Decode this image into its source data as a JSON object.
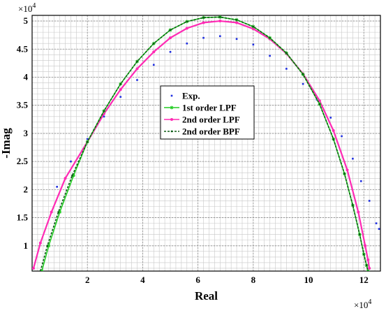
{
  "chart_data": {
    "type": "scatter",
    "xlabel": "Real",
    "ylabel": "-Imag",
    "x_multiplier": "×10",
    "x_exponent": "4",
    "y_multiplier": "×10",
    "y_exponent": "4",
    "xlim": [
      0,
      12.6
    ],
    "ylim": [
      0.55,
      5.1
    ],
    "x_ticks": [
      2,
      4,
      6,
      8,
      10,
      12
    ],
    "y_ticks": [
      1,
      1.5,
      2,
      2.5,
      3,
      3.5,
      4,
      4.5,
      5
    ],
    "grid": true,
    "minor_grid": true,
    "legend_position": "center",
    "series": [
      {
        "name": "Exp.",
        "style": "dots",
        "color": "#1f2fe0",
        "x": [
          0.9,
          1.4,
          2.0,
          2.6,
          3.2,
          3.8,
          4.4,
          5.0,
          5.6,
          6.2,
          6.8,
          7.4,
          8.0,
          8.6,
          9.2,
          9.8,
          10.3,
          10.8,
          11.2,
          11.6,
          11.9,
          12.2,
          12.45,
          12.55
        ],
        "y": [
          2.05,
          2.5,
          2.9,
          3.3,
          3.65,
          3.95,
          4.22,
          4.45,
          4.6,
          4.7,
          4.73,
          4.68,
          4.58,
          4.38,
          4.15,
          3.88,
          3.6,
          3.28,
          2.95,
          2.55,
          2.15,
          1.8,
          1.4,
          1.3
        ]
      },
      {
        "name": "1st order LPF",
        "style": "star-line",
        "color": "#22cc22",
        "x": [
          0.35,
          0.6,
          1.0,
          1.5,
          2.0,
          2.6,
          3.2,
          3.8,
          4.4,
          5.0,
          5.6,
          6.2,
          6.8,
          7.4,
          8.0,
          8.6,
          9.2,
          9.8,
          10.4,
          10.9,
          11.3,
          11.6,
          11.85,
          12.0,
          12.1,
          12.15
        ],
        "y": [
          0.55,
          1.0,
          1.6,
          2.25,
          2.85,
          3.4,
          3.88,
          4.28,
          4.6,
          4.84,
          4.99,
          5.06,
          5.07,
          5.02,
          4.9,
          4.7,
          4.43,
          4.05,
          3.52,
          2.9,
          2.28,
          1.72,
          1.2,
          0.85,
          0.65,
          0.55
        ]
      },
      {
        "name": "2nd order LPF",
        "style": "dot-line",
        "color": "#ff2ab4",
        "x": [
          0.05,
          0.3,
          0.7,
          1.2,
          2.0,
          2.6,
          3.2,
          3.8,
          4.4,
          5.0,
          5.6,
          6.2,
          6.8,
          7.4,
          8.0,
          8.6,
          9.2,
          9.8,
          10.4,
          10.9,
          11.4,
          11.8,
          12.05,
          12.15,
          12.2
        ],
        "y": [
          0.6,
          1.05,
          1.6,
          2.2,
          2.85,
          3.35,
          3.78,
          4.15,
          4.45,
          4.7,
          4.87,
          4.97,
          5.0,
          4.97,
          4.86,
          4.68,
          4.42,
          4.06,
          3.58,
          3.05,
          2.35,
          1.6,
          1.0,
          0.75,
          0.6
        ]
      },
      {
        "name": "2nd order BPF",
        "style": "dash-line",
        "color": "#0b5a14",
        "x": [
          0.3,
          0.55,
          0.95,
          1.45,
          2.0,
          2.6,
          3.2,
          3.8,
          4.4,
          5.0,
          5.6,
          6.2,
          6.8,
          7.4,
          8.0,
          8.6,
          9.2,
          9.8,
          10.4,
          10.9,
          11.3,
          11.6,
          11.85,
          12.0,
          12.1,
          12.15
        ],
        "y": [
          0.55,
          1.0,
          1.6,
          2.25,
          2.85,
          3.4,
          3.88,
          4.28,
          4.6,
          4.84,
          4.99,
          5.06,
          5.07,
          5.02,
          4.9,
          4.7,
          4.43,
          4.05,
          3.52,
          2.9,
          2.28,
          1.72,
          1.2,
          0.85,
          0.65,
          0.55
        ]
      }
    ]
  }
}
